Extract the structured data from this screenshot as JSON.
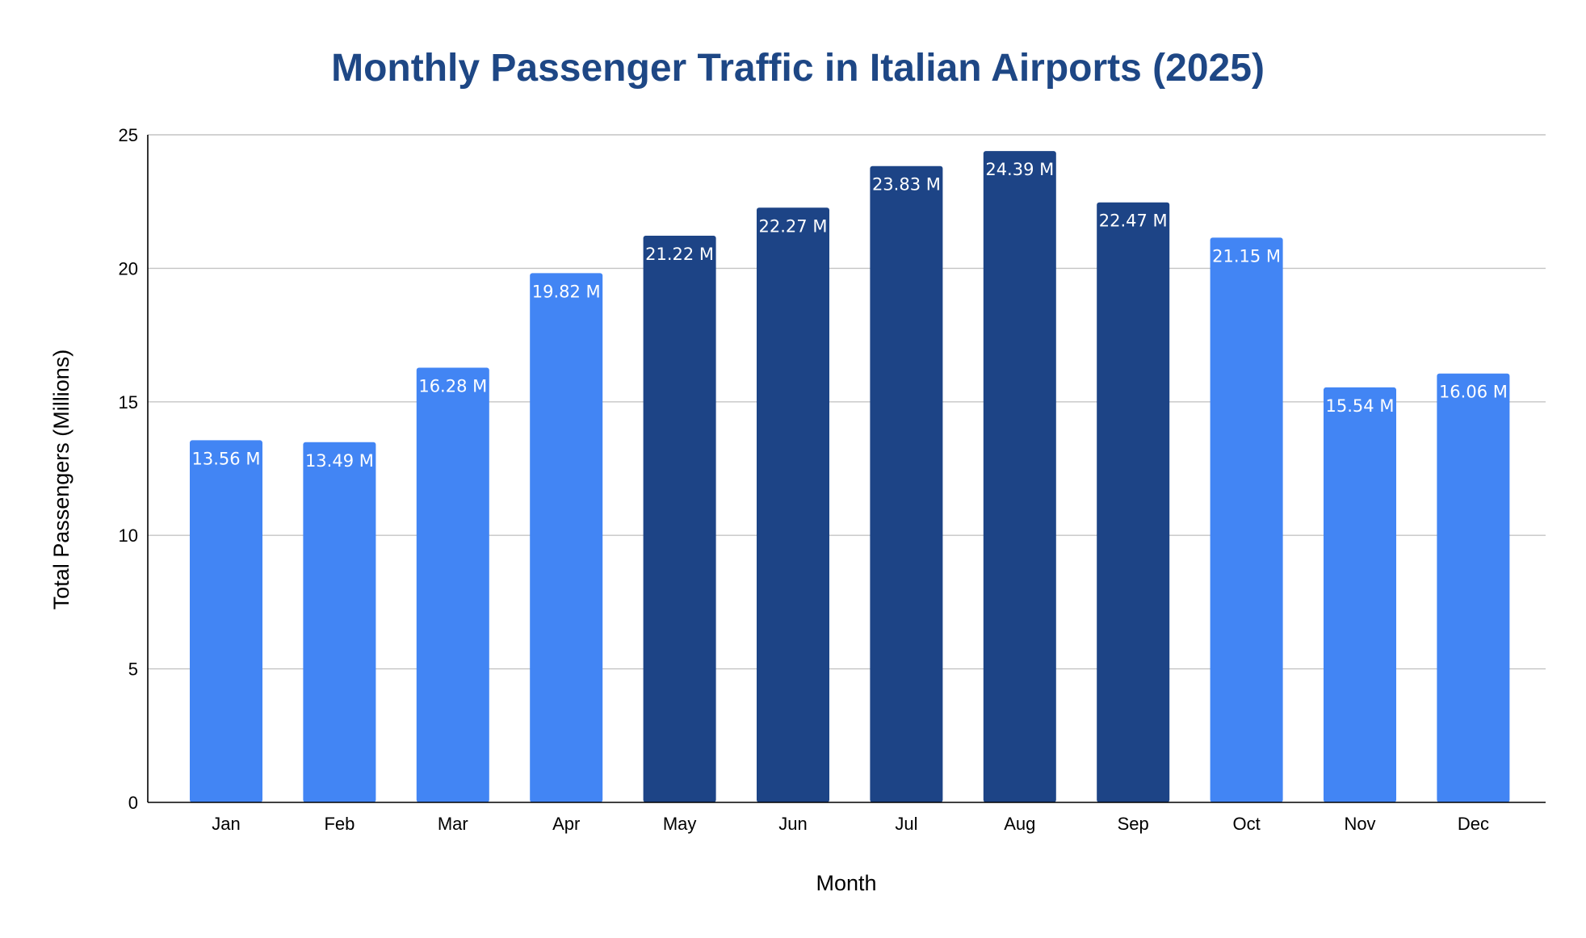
{
  "chart_data": {
    "type": "bar",
    "title": "Monthly Passenger Traffic in Italian Airports (2025)",
    "xlabel": "Month",
    "ylabel": "Total Passengers (Millions)",
    "categories": [
      "Jan",
      "Feb",
      "Mar",
      "Apr",
      "May",
      "Jun",
      "Jul",
      "Aug",
      "Sep",
      "Oct",
      "Nov",
      "Dec"
    ],
    "values": [
      13.56,
      13.49,
      16.28,
      19.82,
      21.22,
      22.27,
      23.83,
      24.39,
      22.47,
      21.15,
      15.54,
      16.06
    ],
    "data_labels": [
      "13.56 M",
      "13.49 M",
      "16.28 M",
      "19.82 M",
      "21.22 M",
      "22.27 M",
      "23.83 M",
      "24.39 M",
      "22.47 M",
      "21.15 M",
      "15.54 M",
      "16.06 M"
    ],
    "bar_colors": [
      "#4285f4",
      "#4285f4",
      "#4285f4",
      "#4285f4",
      "#1d4486",
      "#1d4486",
      "#1d4486",
      "#1d4486",
      "#1d4486",
      "#4285f4",
      "#4285f4",
      "#4285f4"
    ],
    "ylim": [
      0,
      25
    ],
    "yticks": [
      0,
      5,
      10,
      15,
      20,
      25
    ],
    "grid": true,
    "legend": "none"
  },
  "colors": {
    "title": "#1e4785",
    "light_bar": "#4285f4",
    "dark_bar": "#1d4486"
  }
}
